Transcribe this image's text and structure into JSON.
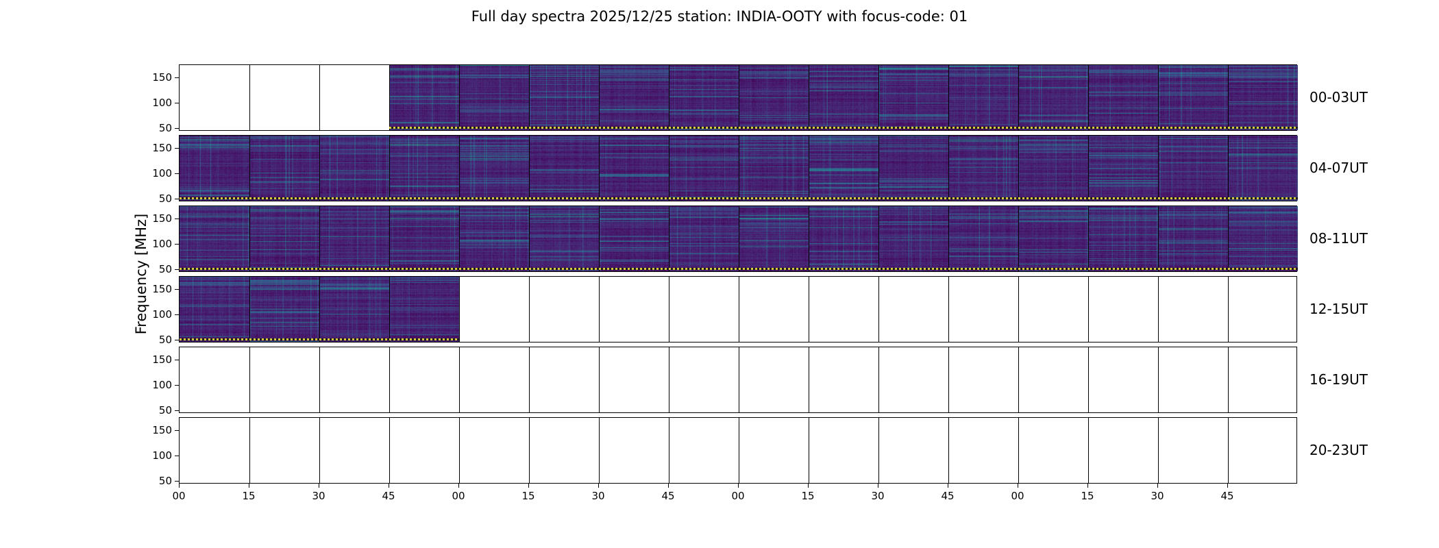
{
  "title": "Full day spectra 2025/12/25 station: INDIA-OOTY with focus-code: 01",
  "ylabel": "Frequency [MHz]",
  "colors": {
    "background": "#ffffff",
    "axis": "#000000",
    "marker_yellow": "#d9cc3c",
    "marker_dark": "#1b1b1b",
    "spectrogram_dark_purple": "#440154",
    "spectrogram_teal": "#21918c"
  },
  "chart_data": {
    "type": "heatmap",
    "title": "Full day spectra 2025/12/25 station: INDIA-OOTY with focus-code: 01",
    "date": "2025/12/25",
    "station": "INDIA-OOTY",
    "focus_code": "01",
    "ylabel": "Frequency [MHz]",
    "yticks": [
      150,
      100,
      50
    ],
    "freq_range_mhz": [
      45,
      175
    ],
    "xtick_labels": [
      "00",
      "15",
      "30",
      "45",
      "00",
      "15",
      "30",
      "45",
      "00",
      "15",
      "30",
      "45",
      "00",
      "15",
      "30",
      "45"
    ],
    "minutes_per_panel": 15,
    "panels_per_row": 16,
    "colormap": "viridis",
    "grid": false,
    "legend": "none",
    "rows": [
      {
        "label": "00-03UT",
        "filled_panels": [
          0,
          0,
          0,
          1,
          1,
          1,
          1,
          1,
          1,
          1,
          1,
          1,
          1,
          1,
          1,
          1
        ]
      },
      {
        "label": "04-07UT",
        "filled_panels": [
          1,
          1,
          1,
          1,
          1,
          1,
          1,
          1,
          1,
          1,
          1,
          1,
          1,
          1,
          1,
          1
        ]
      },
      {
        "label": "08-11UT",
        "filled_panels": [
          1,
          1,
          1,
          1,
          1,
          1,
          1,
          1,
          1,
          1,
          1,
          1,
          1,
          1,
          1,
          1
        ]
      },
      {
        "label": "12-15UT",
        "filled_panels": [
          1,
          1,
          1,
          1,
          0,
          0,
          0,
          0,
          0,
          0,
          0,
          0,
          0,
          0,
          0,
          0
        ]
      },
      {
        "label": "16-19UT",
        "filled_panels": [
          0,
          0,
          0,
          0,
          0,
          0,
          0,
          0,
          0,
          0,
          0,
          0,
          0,
          0,
          0,
          0
        ]
      },
      {
        "label": "20-23UT",
        "filled_panels": [
          0,
          0,
          0,
          0,
          0,
          0,
          0,
          0,
          0,
          0,
          0,
          0,
          0,
          0,
          0,
          0
        ]
      }
    ]
  }
}
